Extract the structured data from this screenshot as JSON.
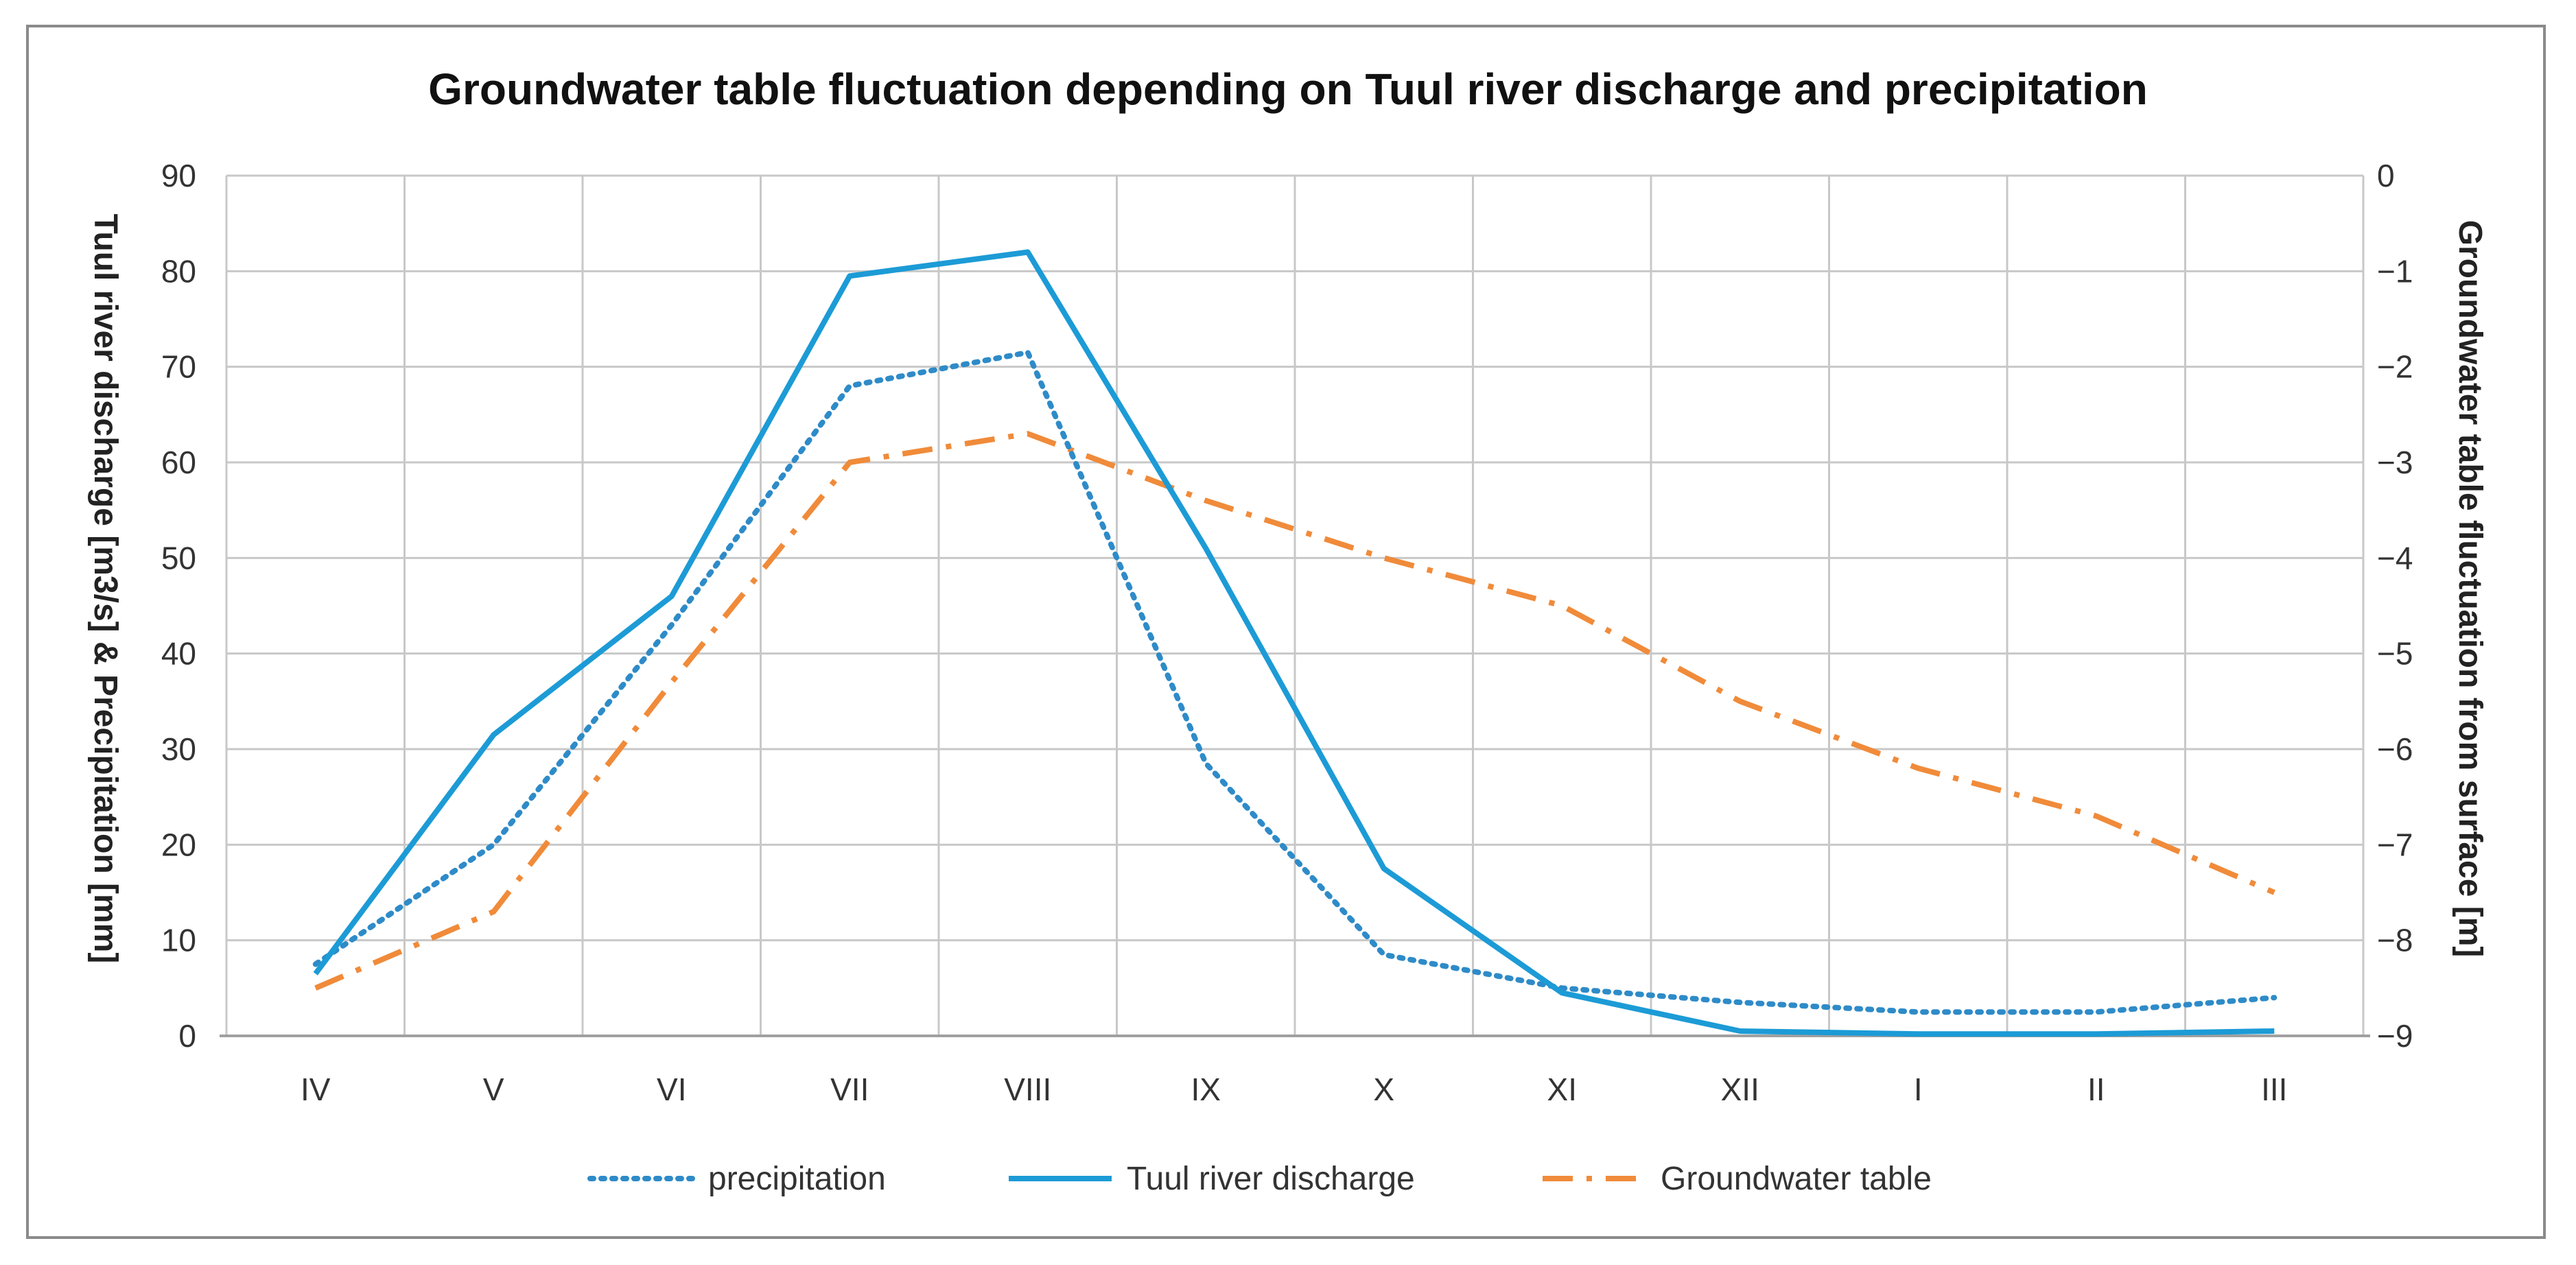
{
  "chart_data": {
    "type": "line",
    "title": "Groundwater table fluctuation depending on Tuul river discharge and precipitation",
    "categories": [
      "IV",
      "V",
      "VI",
      "VII",
      "VIII",
      "IX",
      "X",
      "XI",
      "XII",
      "I",
      "II",
      "III"
    ],
    "y_left": {
      "label": "Tuul river discharge [m3/s] & Precipitation [mm]",
      "range": [
        0,
        90
      ],
      "ticks": [
        0,
        10,
        20,
        30,
        40,
        50,
        60,
        70,
        80,
        90
      ]
    },
    "y_right": {
      "label": "Groundwater table fluctuation from surface [m]",
      "range": [
        -9,
        0
      ],
      "ticks": [
        0,
        -1,
        -2,
        -3,
        -4,
        -5,
        -6,
        -7,
        -8,
        -9
      ]
    },
    "grid": true,
    "legend_position": "bottom",
    "series": [
      {
        "name": "precipitation",
        "axis": "left",
        "style": "dotted",
        "color": "#2e8bc8",
        "values": [
          7.5,
          20,
          43,
          68,
          71.5,
          28.5,
          8.5,
          5,
          3.5,
          2.5,
          2.5,
          4
        ]
      },
      {
        "name": "Tuul river discharge",
        "axis": "left",
        "style": "solid",
        "color": "#1c9bd6",
        "values": [
          6.5,
          31.5,
          46,
          79.5,
          82,
          51,
          17.5,
          4.5,
          0.5,
          0.2,
          0.2,
          0.5
        ]
      },
      {
        "name": "Groundwater table",
        "axis": "right",
        "style": "dash-dot",
        "color": "#f08b3a",
        "values": [
          -8.5,
          -7.7,
          -5.3,
          -3.0,
          -2.7,
          -3.4,
          -4.0,
          -4.5,
          -5.5,
          -6.2,
          -6.7,
          -7.5
        ]
      }
    ]
  }
}
